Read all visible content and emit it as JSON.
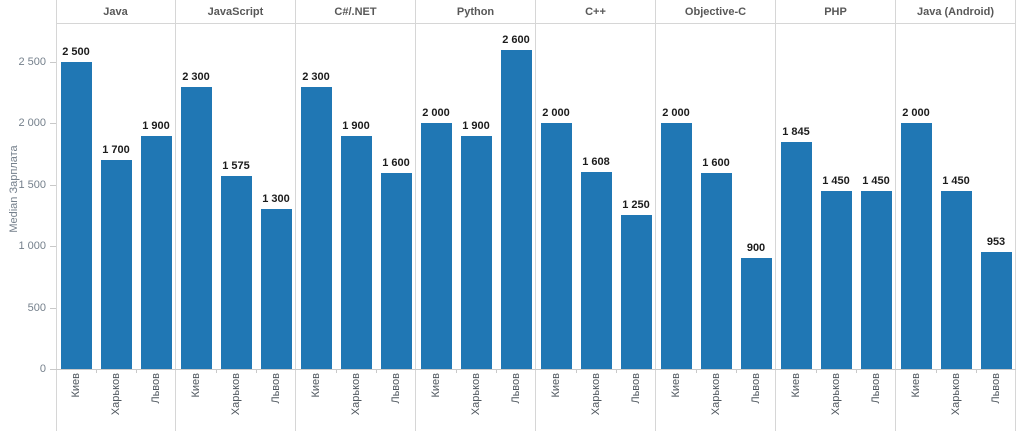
{
  "chart_data": {
    "type": "bar",
    "title": "",
    "ylabel": "Median Зарплата",
    "xlabel": "",
    "categories": [
      "Киев",
      "Харьков",
      "Львов"
    ],
    "facets": [
      "Java",
      "JavaScript",
      "C#/.NET",
      "Python",
      "C++",
      "Objective-C",
      "PHP",
      "Java (Android)"
    ],
    "series": [
      {
        "name": "Java",
        "values": [
          2500,
          1700,
          1900
        ]
      },
      {
        "name": "JavaScript",
        "values": [
          2300,
          1575,
          1300
        ]
      },
      {
        "name": "C#/.NET",
        "values": [
          2300,
          1900,
          1600
        ]
      },
      {
        "name": "Python",
        "values": [
          2000,
          1900,
          2600
        ]
      },
      {
        "name": "C++",
        "values": [
          2000,
          1608,
          1250
        ]
      },
      {
        "name": "Objective-C",
        "values": [
          2000,
          1600,
          900
        ]
      },
      {
        "name": "PHP",
        "values": [
          1845,
          1450,
          1450
        ]
      },
      {
        "name": "Java (Android)",
        "values": [
          2000,
          1450,
          953
        ]
      }
    ],
    "data_labels": [
      [
        "2 500",
        "1 700",
        "1 900"
      ],
      [
        "2 300",
        "1 575",
        "1 300"
      ],
      [
        "2 300",
        "1 900",
        "1 600"
      ],
      [
        "2 000",
        "1 900",
        "2 600"
      ],
      [
        "2 000",
        "1 608",
        "1 250"
      ],
      [
        "2 000",
        "1 600",
        "900"
      ],
      [
        "1 845",
        "1 450",
        "1 450"
      ],
      [
        "2 000",
        "1 450",
        "953"
      ]
    ],
    "yticks": [
      0,
      500,
      1000,
      1500,
      2000,
      2500
    ],
    "ytick_labels": [
      "0",
      "500",
      "1 000",
      "1 500",
      "2 000",
      "2 500"
    ],
    "ylim": [
      0,
      2817
    ],
    "grid": false,
    "legend_position": "none",
    "bar_color": "#2077b4"
  }
}
